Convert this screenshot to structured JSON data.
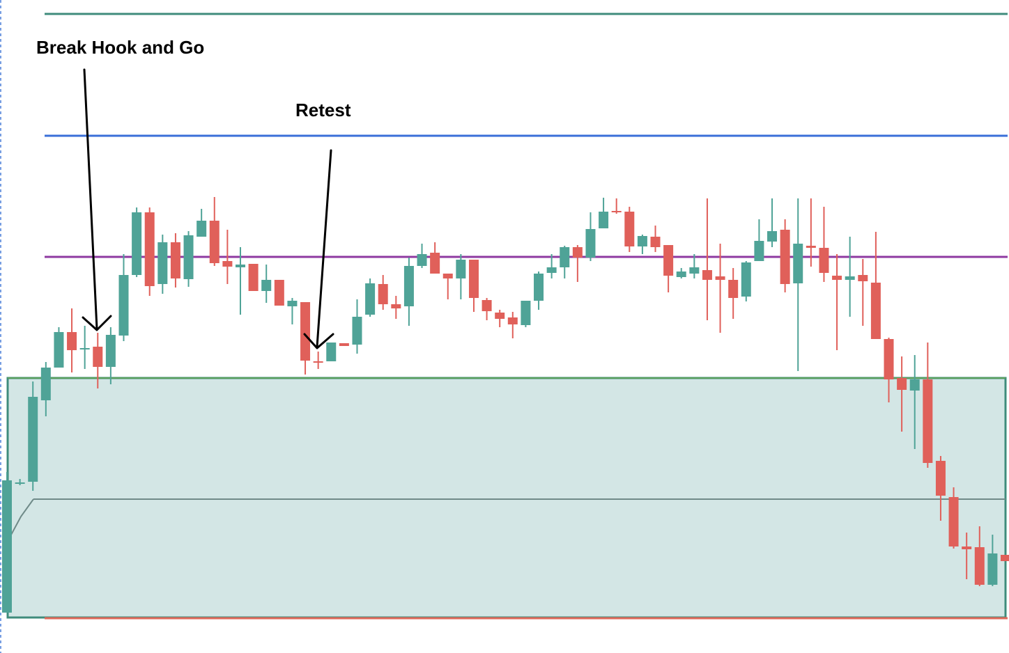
{
  "chart_data": {
    "type": "candlestick",
    "ylim": [
      0,
      938
    ],
    "up_color": "#4fa397",
    "down_color": "#e0605a",
    "open": [
      58,
      245,
      246,
      363,
      410,
      461,
      438,
      440,
      411,
      456,
      543,
      633,
      530,
      590,
      537,
      598,
      621,
      563,
      554,
      559,
      520,
      536,
      498,
      504,
      419,
      419,
      445,
      443,
      486,
      530,
      501,
      498,
      556,
      575,
      545,
      538,
      565,
      507,
      489,
      482,
      471,
      506,
      546,
      554,
      583,
      568,
      610,
      635,
      634,
      584,
      598,
      586,
      540,
      545,
      550,
      541,
      536,
      512,
      563,
      591,
      608,
      531,
      585,
      582,
      542,
      536,
      543,
      532,
      451,
      395,
      377,
      393,
      276,
      224,
      153,
      152,
      98,
      141
    ],
    "high": [
      260,
      250,
      390,
      418,
      468,
      495,
      470,
      460,
      468,
      573,
      640,
      640,
      601,
      603,
      606,
      638,
      655,
      608,
      583,
      559,
      558,
      536,
      510,
      504,
      433,
      446,
      445,
      508,
      538,
      543,
      513,
      568,
      588,
      590,
      545,
      573,
      565,
      510,
      493,
      490,
      506,
      548,
      573,
      585,
      586,
      633,
      654,
      653,
      641,
      601,
      614,
      586,
      553,
      573,
      653,
      588,
      553,
      563,
      623,
      653,
      623,
      653,
      653,
      641,
      573,
      598,
      566,
      605,
      453,
      426,
      428,
      446,
      283,
      238,
      173,
      182,
      170,
      141
    ],
    "low": [
      58,
      241,
      233,
      340,
      410,
      403,
      408,
      380,
      386,
      448,
      540,
      513,
      516,
      525,
      526,
      598,
      556,
      530,
      486,
      520,
      503,
      499,
      472,
      400,
      408,
      419,
      441,
      430,
      483,
      493,
      480,
      470,
      553,
      545,
      508,
      508,
      490,
      478,
      468,
      452,
      468,
      493,
      538,
      538,
      533,
      563,
      610,
      631,
      576,
      573,
      576,
      518,
      538,
      538,
      478,
      460,
      480,
      505,
      563,
      583,
      518,
      405,
      555,
      533,
      435,
      483,
      470,
      451,
      360,
      318,
      293,
      266,
      190,
      150,
      106,
      96,
      96,
      132
    ],
    "close": [
      248,
      245,
      368,
      410,
      461,
      435,
      438,
      411,
      457,
      543,
      633,
      527,
      590,
      538,
      600,
      621,
      560,
      555,
      558,
      520,
      536,
      499,
      506,
      420,
      418,
      446,
      441,
      483,
      531,
      501,
      495,
      556,
      573,
      545,
      538,
      565,
      510,
      491,
      480,
      472,
      506,
      545,
      554,
      583,
      568,
      609,
      634,
      633,
      584,
      599,
      583,
      542,
      548,
      554,
      536,
      536,
      510,
      561,
      592,
      606,
      530,
      588,
      582,
      546,
      536,
      541,
      534,
      451,
      393,
      378,
      393,
      273,
      226,
      153,
      149,
      98,
      143,
      132
    ],
    "levels": [
      {
        "value": 918,
        "color": "#3f8c7c"
      },
      {
        "value": 743,
        "color": "#3a6fd8"
      },
      {
        "value": 569,
        "color": "#8e3aa1"
      },
      {
        "value": 50,
        "color": "#e06a5a"
      }
    ],
    "zone": {
      "top": 395,
      "bottom": 51,
      "color": "#d3e6e5",
      "border": "#3f8c7c",
      "edge_color": "#5aa05a"
    },
    "midline": {
      "value": 221,
      "color": "#6f8a88"
    },
    "annotations": [
      {
        "text": "Break Hook and Go"
      },
      {
        "text": "Retest"
      }
    ]
  }
}
